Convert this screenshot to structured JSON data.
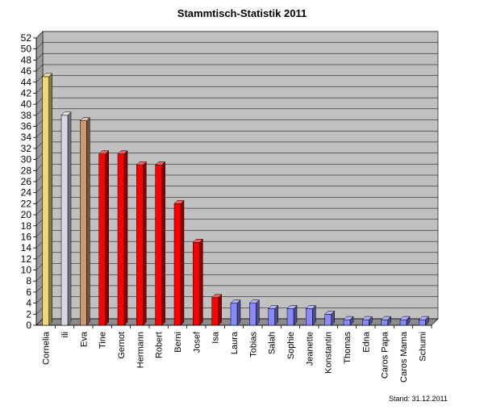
{
  "chart_data": {
    "type": "bar",
    "title": "Stammtisch-Statistik 2011",
    "categories": [
      "Cornelia",
      "ili",
      "Eva",
      "Tine",
      "Gernot",
      "Hermann",
      "Robert",
      "Berni",
      "Josef",
      "Isa",
      "Laura",
      "Tobias",
      "Salah",
      "Sophie",
      "Jeanette",
      "Konstantin",
      "Thomas",
      "Edna",
      "Caros Papa",
      "Caros Mama",
      "Schumi"
    ],
    "values": [
      45,
      38,
      37,
      31,
      31,
      29,
      29,
      22,
      15,
      5,
      4,
      4,
      3,
      3,
      3,
      2,
      1,
      1,
      1,
      1,
      1
    ],
    "colors": [
      "#f0d878",
      "#d8d8e0",
      "#d09870",
      "#ff0000",
      "#ff0000",
      "#ff0000",
      "#ff0000",
      "#ff0000",
      "#ff0000",
      "#ff0000",
      "#8888ff",
      "#8888ff",
      "#8888ff",
      "#8888ff",
      "#8888ff",
      "#8888ff",
      "#8888ff",
      "#8888ff",
      "#8888ff",
      "#8888ff",
      "#8888ff"
    ],
    "ylim": [
      0,
      52
    ],
    "ytick_step": 2,
    "grid": true,
    "plot_background": "#c0c0c0",
    "xlabel": "",
    "ylabel": ""
  },
  "footer": "Stand: 31.12.2011"
}
